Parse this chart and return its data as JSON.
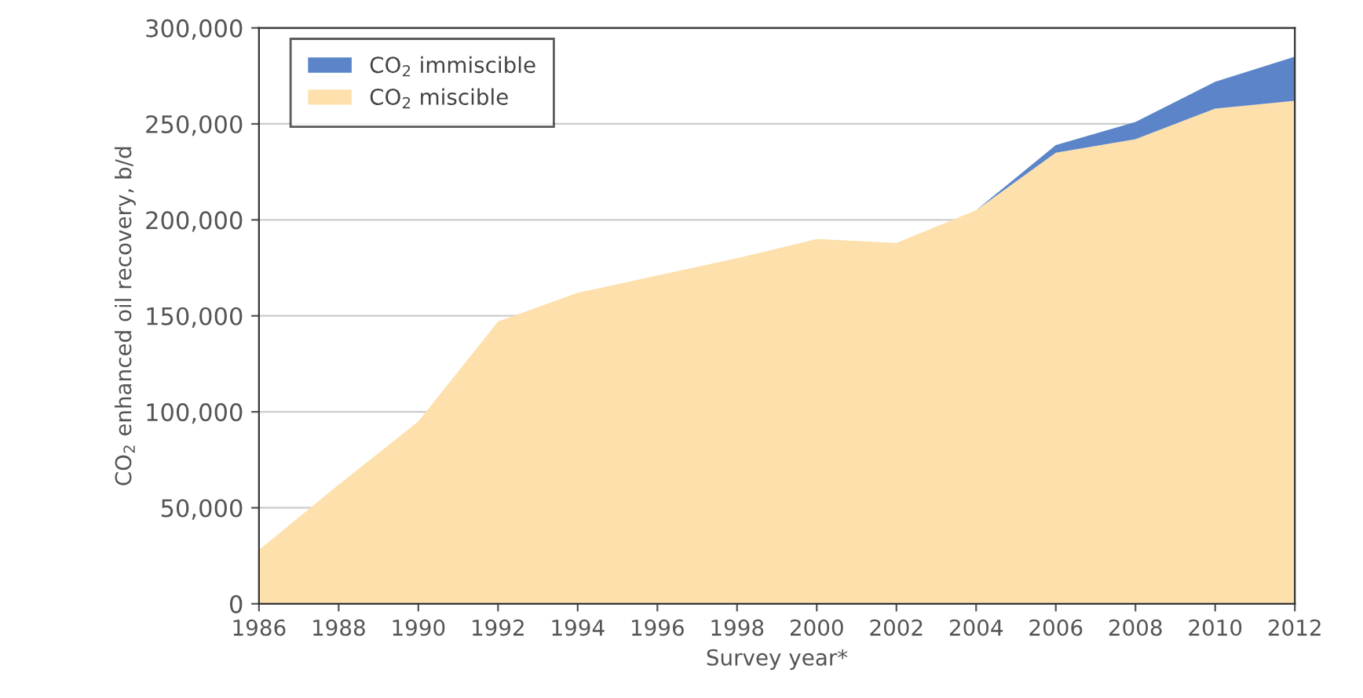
{
  "chart_data": {
    "type": "area",
    "stacked": true,
    "x": [
      1986,
      1988,
      1990,
      1992,
      1994,
      1996,
      1998,
      2000,
      2002,
      2004,
      2006,
      2008,
      2010,
      2012
    ],
    "series": [
      {
        "name": "CO$_{2}$ miscible",
        "color": "#fde0ac",
        "values": [
          28000,
          62000,
          95000,
          147000,
          162000,
          171000,
          180000,
          190000,
          188000,
          205000,
          235000,
          242000,
          258000,
          262000
        ]
      },
      {
        "name": "CO$_{2}$ immiscible",
        "color": "#5b85c8",
        "values": [
          0,
          0,
          0,
          0,
          0,
          0,
          0,
          0,
          0,
          0,
          4000,
          9000,
          14000,
          23000
        ]
      }
    ],
    "xlabel": "Survey year*",
    "ylabel": "CO$_{2}$ enhanced oil recovery, b/d",
    "xlim": [
      1986,
      2012
    ],
    "xticks": [
      1986,
      1988,
      1990,
      1992,
      1994,
      1996,
      1998,
      2000,
      2002,
      2004,
      2006,
      2008,
      2010,
      2012
    ],
    "ylim": [
      0,
      300000
    ],
    "yticks": [
      {
        "value": 0,
        "label": "0"
      },
      {
        "value": 50000,
        "label": "50,000"
      },
      {
        "value": 100000,
        "label": "100,000"
      },
      {
        "value": 150000,
        "label": "150,000"
      },
      {
        "value": 200000,
        "label": "200,000"
      },
      {
        "value": 250000,
        "label": "250,000"
      },
      {
        "value": 300000,
        "label": "300,000"
      }
    ],
    "grid": "y",
    "legend": "top left"
  }
}
